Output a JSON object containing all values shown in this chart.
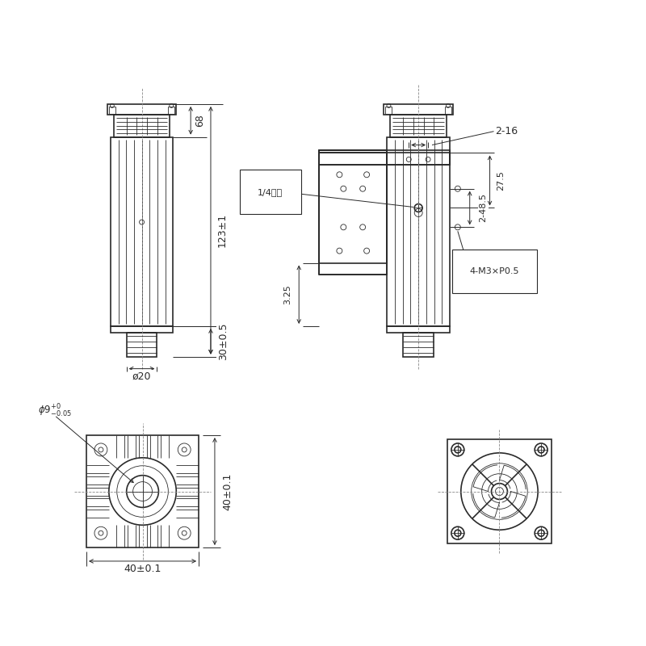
{
  "bg_color": "#ffffff",
  "lc": "#2a2a2a",
  "lw_main": 1.2,
  "lw_thin": 0.6,
  "lw_dim": 0.7,
  "annotations": {
    "dim_68": "68",
    "dim_123": "123±1",
    "dim_48_5": "2-48.5",
    "dim_30": "30±0.5",
    "dim_20": "ø20",
    "dim_9": "ø9⁺⁰₋₀.₀₅",
    "dim_40h": "40±0.1",
    "dim_40w": "40±0.1",
    "dim_2_16": "2-16",
    "dim_27_5": "27.5",
    "dim_3_25": "3.25",
    "dim_4m3": "4-M3×P0.5",
    "label_14": "1/4英制"
  }
}
